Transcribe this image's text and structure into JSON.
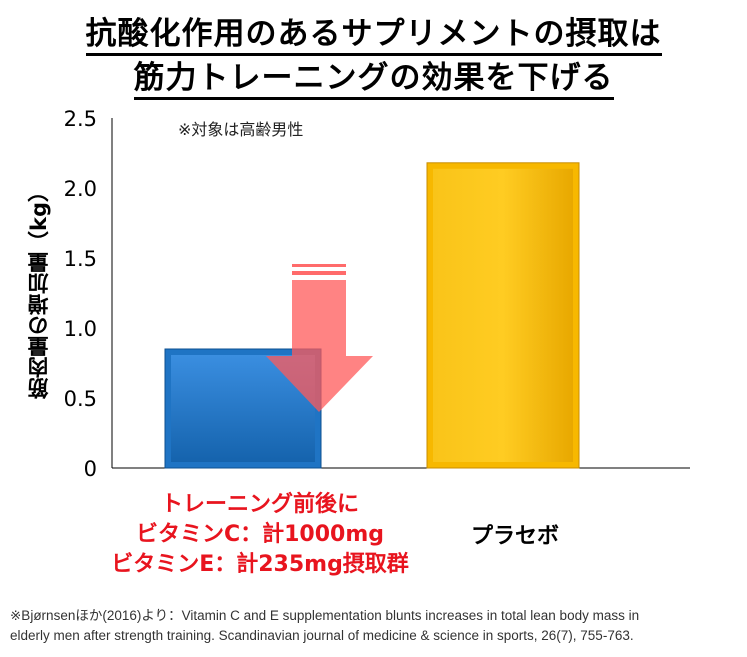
{
  "title": {
    "line1": "抗酸化作用のあるサプリメントの摂取は",
    "line2": "筋力トレーニングの効果を下げる"
  },
  "note": "※対象は高齢男性",
  "chart_data": {
    "type": "bar",
    "title": "抗酸化作用のあるサプリメントの摂取は筋力トレーニングの効果を下げる",
    "ylabel": "筋肉量の増加量（kg）",
    "xlabel": "",
    "ylim": [
      0,
      2.5
    ],
    "yticks": [
      0,
      0.5,
      1.0,
      1.5,
      2.0,
      2.5
    ],
    "ytick_labels": [
      "0",
      "0.5",
      "1.0",
      "1.5",
      "2.0",
      "2.5"
    ],
    "categories": [
      "トレーニング前後にビタミンC：計1000mgビタミンE：計235mg摂取群",
      "プラセボ"
    ],
    "values": [
      0.85,
      2.18
    ],
    "colors": [
      "#1f74c4",
      "#f7b800"
    ],
    "annotation": "downward arrow indicating decrease"
  },
  "category_labels": {
    "group1_line1": "トレーニング前後に",
    "group1_line2": "ビタミンC：計1000mg",
    "group1_line3": "ビタミンE：計235mg摂取群",
    "group2": "プラセボ"
  },
  "citation": {
    "line1": "※Bjørnsenほか(2016)より：Vitamin C and E supplementation blunts increases in total lean body mass in",
    "line2": "elderly men after strength training. Scandinavian journal of medicine & science in sports, 26(7), 755-763."
  },
  "colors": {
    "accent_red": "#e8141e",
    "arrow": "#ff6b6b"
  }
}
